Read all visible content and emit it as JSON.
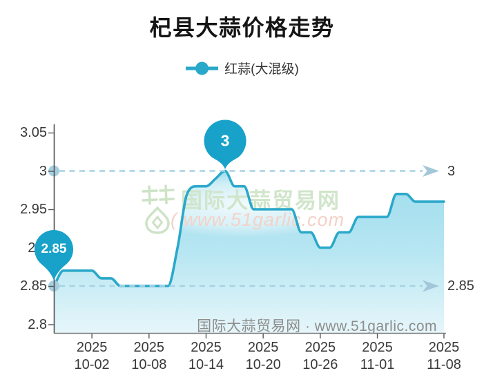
{
  "title": "杞县大蒜价格走势",
  "legend": {
    "label": "红蒜(大混级)"
  },
  "colors": {
    "line": "#2aa8ca",
    "pin": "#18a2c9",
    "dashed": "#a5d2e4",
    "arrow": "#a3c6d9",
    "dot": "#a5cfe0",
    "axis": "#565656"
  },
  "chart_data": {
    "type": "line",
    "series_name": "红蒜(大混级)",
    "title": "杞县大蒜价格走势",
    "ylim": [
      2.8,
      3.05
    ],
    "x": [
      "09-28",
      "09-29",
      "09-30",
      "10-01",
      "10-02",
      "10-03",
      "10-04",
      "10-05",
      "10-06",
      "10-07",
      "10-08",
      "10-09",
      "10-10",
      "10-11",
      "10-12",
      "10-13",
      "10-14",
      "10-15",
      "10-16",
      "10-17",
      "10-18",
      "10-19",
      "10-20",
      "10-21",
      "10-22",
      "10-23",
      "10-24",
      "10-25",
      "10-26",
      "10-27",
      "10-28",
      "10-29",
      "10-30",
      "10-31",
      "11-01",
      "11-02",
      "11-03",
      "11-04",
      "11-05",
      "11-06",
      "11-07",
      "11-08"
    ],
    "values": [
      2.85,
      2.87,
      2.87,
      2.87,
      2.87,
      2.86,
      2.86,
      2.85,
      2.85,
      2.85,
      2.85,
      2.85,
      2.85,
      2.9,
      2.97,
      2.98,
      2.98,
      2.99,
      3.0,
      2.98,
      2.98,
      2.95,
      2.95,
      2.95,
      2.95,
      2.95,
      2.92,
      2.92,
      2.9,
      2.9,
      2.92,
      2.92,
      2.94,
      2.94,
      2.94,
      2.94,
      2.97,
      2.97,
      2.96,
      2.96,
      2.96,
      2.96
    ],
    "y_ticks": [
      {
        "value": 3.05,
        "label": "3.05"
      },
      {
        "value": 3.0,
        "label": "3"
      },
      {
        "value": 2.95,
        "label": "2.95"
      },
      {
        "value": 2.9,
        "label": "2.9"
      },
      {
        "value": 2.85,
        "label": "2.85"
      },
      {
        "value": 2.8,
        "label": "2.8"
      }
    ],
    "x_ticks": [
      {
        "year": "2025",
        "date": "10-02"
      },
      {
        "year": "2025",
        "date": "10-08"
      },
      {
        "year": "2025",
        "date": "10-14"
      },
      {
        "year": "2025",
        "date": "10-20"
      },
      {
        "year": "2025",
        "date": "10-26"
      },
      {
        "year": "2025",
        "date": "11-01"
      },
      {
        "year": "2025",
        "date": "11-08"
      }
    ],
    "mark_lines": [
      {
        "value": 3.0,
        "label": "3"
      },
      {
        "value": 2.85,
        "label": "2.85"
      }
    ],
    "max_pin": {
      "label": "3",
      "value": 3.0,
      "date": "10-16"
    },
    "min_pin": {
      "label": "2.85",
      "value": 2.85,
      "date": "09-28"
    }
  },
  "watermark": {
    "brand": "国际大蒜贸易网",
    "site": "( www.51garlic.com"
  },
  "footer": "国际大蒜贸易网 · www.51garlic.com"
}
